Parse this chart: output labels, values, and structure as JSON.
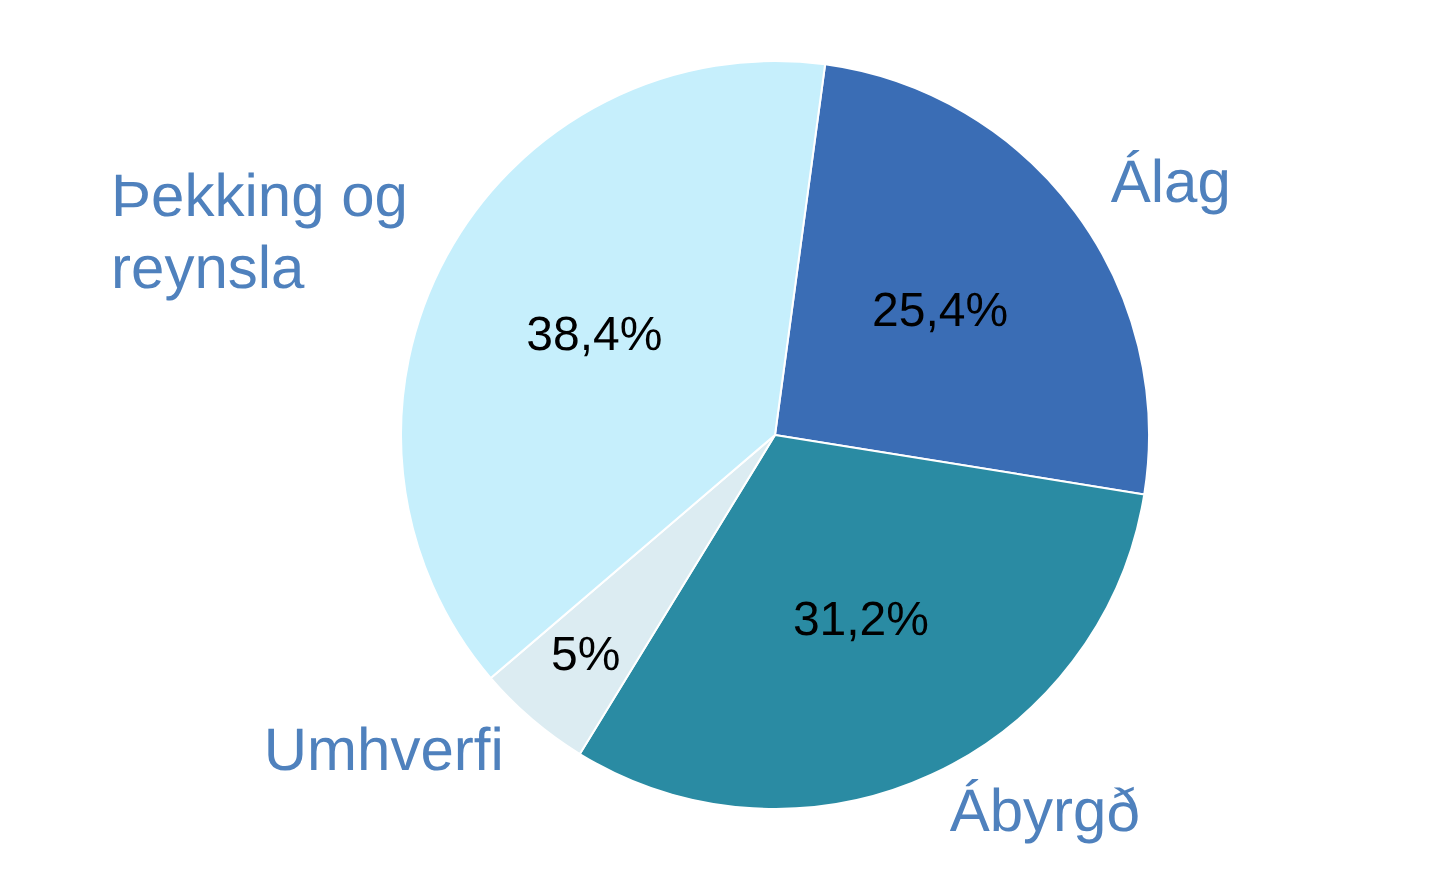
{
  "chart_data": {
    "type": "pie",
    "categories": [
      "Álag",
      "Ábyrgð",
      "Umhverfi",
      "Þekking og reynsla"
    ],
    "values": [
      25.4,
      31.2,
      5,
      38.4
    ],
    "colors": [
      "#3a6db5",
      "#2a8ba3",
      "#dcecf2",
      "#c6effc"
    ],
    "value_labels": [
      "25,4%",
      "31,2%",
      "5%",
      "38,4%"
    ],
    "legend": false
  }
}
